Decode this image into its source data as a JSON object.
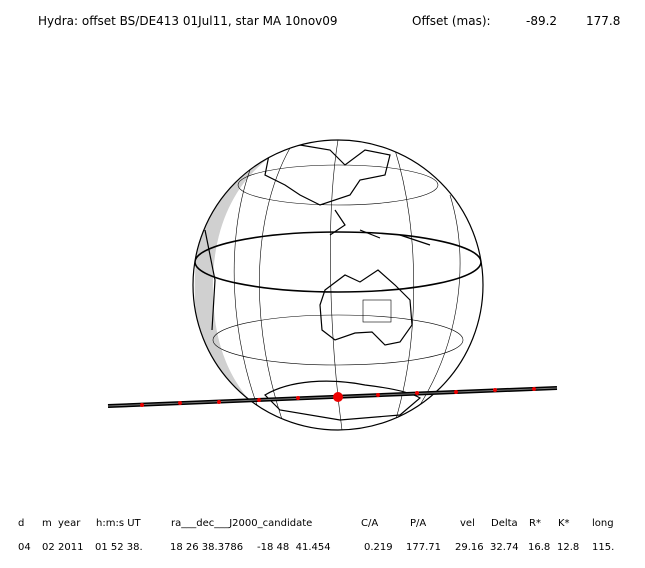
{
  "header": {
    "title": "Hydra: offset BS/DE413 01Jul11, star MA 10nov09",
    "offset_label": "Offset (mas):",
    "offset_x": "-89.2",
    "offset_y": "177.8"
  },
  "table": {
    "columns": [
      "d",
      "m",
      "year",
      "h:m:s UT",
      "ra___dec___J2000_candidate",
      "C/A",
      "P/A",
      "vel",
      "Delta",
      "R*",
      "K*",
      "long"
    ],
    "rows": [
      [
        "04",
        "02",
        "2011",
        "01 52 38.",
        "18 26 38.3786",
        "-18 48  41.454",
        "0.219",
        "177.71",
        "29.16",
        "32.74",
        "16.8",
        "12.8",
        "115."
      ]
    ]
  }
}
